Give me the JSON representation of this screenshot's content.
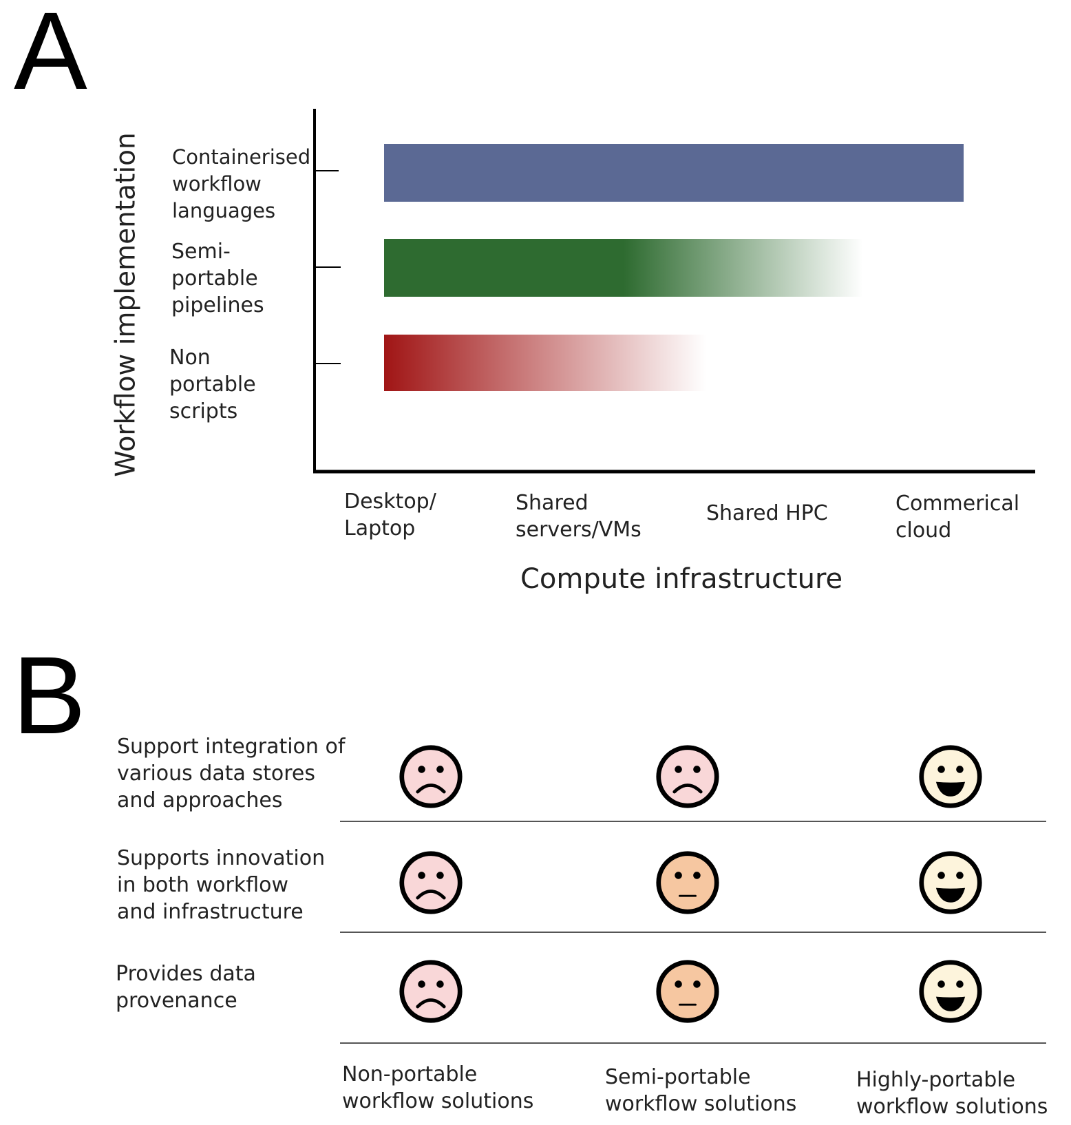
{
  "panel_a": {
    "letter": "A",
    "y_axis_title": "Workflow implementation",
    "x_axis_title": "Compute infrastructure",
    "x_ticks": [
      "Desktop/\nLaptop",
      "Shared\nservers/VMs",
      "Shared HPC",
      "Commerical\ncloud"
    ],
    "rows": [
      {
        "label": "Containerised\nworkflow\nlanguages",
        "color": "#5b6994"
      },
      {
        "label": "Semi-\nportable\npipelines",
        "color": "#2e6b30"
      },
      {
        "label": "Non\nportable\nscripts",
        "color": "#a01515"
      }
    ]
  },
  "panel_b": {
    "letter": "B",
    "criteria": [
      {
        "label": "Support integration of\nvarious data stores\nand approaches",
        "ratings": [
          "sad",
          "sad",
          "happy"
        ]
      },
      {
        "label": "Supports innovation\nin both workflow\nand infrastructure",
        "ratings": [
          "sad",
          "neutral",
          "happy"
        ]
      },
      {
        "label": "Provides data\nprovenance",
        "ratings": [
          "sad",
          "neutral",
          "happy"
        ]
      }
    ],
    "columns": [
      "Non-portable\nworkflow solutions",
      "Semi-portable\nworkflow solutions",
      "Highly-portable\nworkflow solutions"
    ],
    "face_colors": {
      "sad": "#f9d7d8",
      "neutral": "#f6c7a1",
      "happy": "#fdf4dc"
    }
  }
}
